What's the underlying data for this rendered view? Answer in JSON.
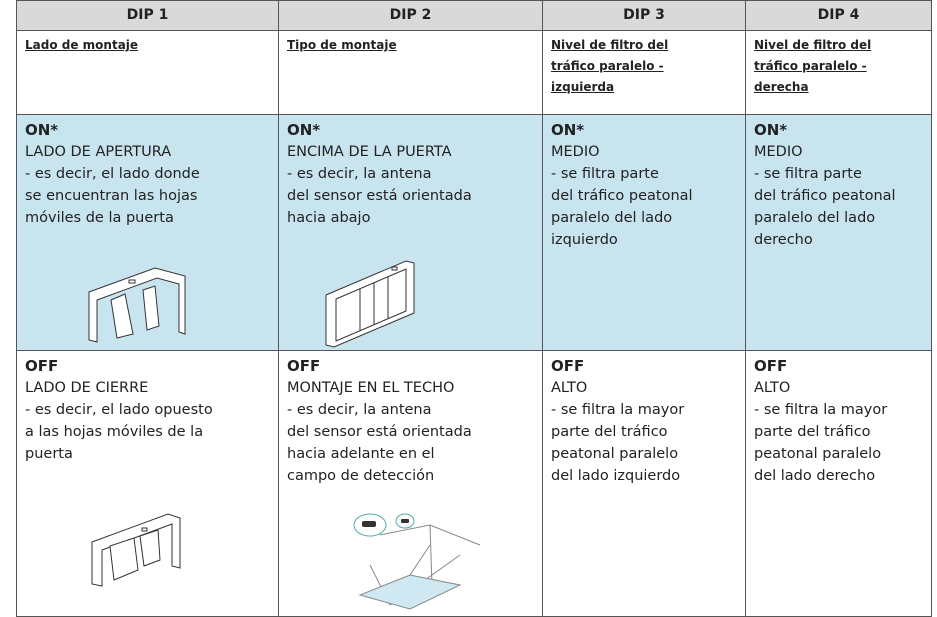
{
  "table": {
    "headers": [
      "DIP 1",
      "DIP 2",
      "DIP 3",
      "DIP 4"
    ],
    "subheaders": [
      [
        "Lado de montaje"
      ],
      [
        "Tipo de montaje"
      ],
      [
        "Nivel de filtro del",
        "tráfico paralelo -",
        "izquierda"
      ],
      [
        "Nivel de filtro del",
        "tráfico paralelo -",
        "derecha"
      ]
    ],
    "rows": [
      [
        {
          "state": "ON*",
          "lines": [
            "LADO DE APERTURA",
            "- es decir, el lado donde",
            "se encuentran las hojas",
            "móviles de la puerta"
          ]
        },
        {
          "state": "ON*",
          "lines": [
            "ENCIMA DE LA PUERTA",
            "- es decir, la antena",
            "del sensor está orientada",
            "hacia abajo"
          ]
        },
        {
          "state": "ON*",
          "lines": [
            "MEDIO",
            "- se filtra parte",
            "del tráfico peatonal",
            "paralelo del lado",
            "izquierdo"
          ]
        },
        {
          "state": "ON*",
          "lines": [
            "MEDIO",
            "- se filtra parte",
            "del tráfico peatonal",
            "paralelo del lado",
            "derecho"
          ]
        }
      ],
      [
        {
          "state": "OFF",
          "lines": [
            "LADO DE CIERRE",
            "- es decir, el lado opuesto",
            "a las hojas móviles de la",
            "puerta"
          ]
        },
        {
          "state": "OFF",
          "lines": [
            "MONTAJE EN EL TECHO",
            "- es decir, la antena",
            "del sensor está orientada",
            "hacia adelante en el",
            "campo de detección"
          ]
        },
        {
          "state": "OFF",
          "lines": [
            "ALTO",
            "- se filtra la mayor",
            "parte del tráfico",
            "peatonal paralelo",
            "del lado izquierdo"
          ]
        },
        {
          "state": "OFF",
          "lines": [
            "ALTO",
            "- se filtra la mayor",
            "parte del tráfico",
            "peatonal paralelo",
            "del lado derecho"
          ]
        }
      ]
    ]
  }
}
